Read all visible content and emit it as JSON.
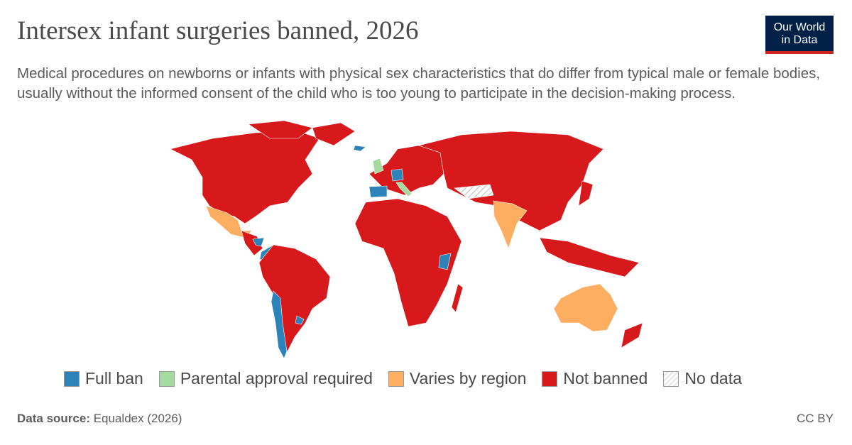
{
  "header": {
    "title": "Intersex infant surgeries banned, 2026",
    "subtitle": "Medical procedures on newborns or infants with physical sex characteristics that do differ from typical male or female bodies, usually without the informed consent of the child who is too young to participate in the decision-making process.",
    "logo": [
      "Our World",
      "in Data"
    ]
  },
  "legend": [
    {
      "label": "Full ban",
      "color": "#2b83ba"
    },
    {
      "label": "Parental approval required",
      "color": "#a6dba0"
    },
    {
      "label": "Varies by region",
      "color": "#fdae61"
    },
    {
      "label": "Not banned",
      "color": "#d7191c"
    },
    {
      "label": "No data",
      "color": "#e6e6e6"
    }
  ],
  "footer": {
    "source_label": "Data source:",
    "source": "Equaldex (2026)",
    "license": "CC BY"
  }
}
